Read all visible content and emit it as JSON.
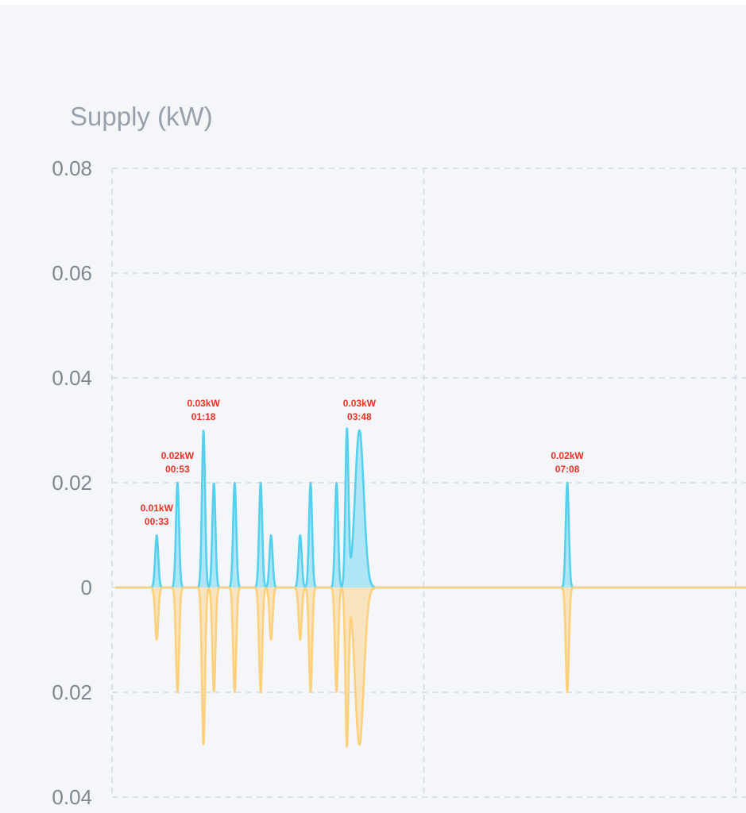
{
  "chart_data": {
    "type": "area",
    "ylabel": "Supply (kW)",
    "ylim": [
      -0.04,
      0.08
    ],
    "y_ticks": [
      {
        "value": 0.08,
        "label": "0.08"
      },
      {
        "value": 0.06,
        "label": "0.06"
      },
      {
        "value": 0.04,
        "label": "0.04"
      },
      {
        "value": 0.02,
        "label": "0.02"
      },
      {
        "value": 0,
        "label": "0"
      },
      {
        "value": -0.02,
        "label": "0.02"
      },
      {
        "value": -0.04,
        "label": "0.04"
      }
    ],
    "x_unit": "minutes",
    "xlim": [
      -10,
      590
    ],
    "x_gridlines": [
      -10,
      290,
      590
    ],
    "grid": true,
    "legend": "none",
    "series": [
      {
        "color": "#55d1ef",
        "fill": "#aee6f6",
        "direction": "up",
        "peaks": [
          {
            "t": 33,
            "v": 0.01
          },
          {
            "t": 53,
            "v": 0.02
          },
          {
            "t": 78,
            "v": 0.03
          },
          {
            "t": 88,
            "v": 0.02
          },
          {
            "t": 108,
            "v": 0.02
          },
          {
            "t": 133,
            "v": 0.02
          },
          {
            "t": 143,
            "v": 0.01
          },
          {
            "t": 171,
            "v": 0.01
          },
          {
            "t": 181,
            "v": 0.02
          },
          {
            "t": 206,
            "v": 0.02
          },
          {
            "t": 216,
            "v": 0.03
          },
          {
            "t": 228,
            "v": 0.03,
            "wide": true
          },
          {
            "t": 428,
            "v": 0.02
          }
        ]
      },
      {
        "color": "#fdd07c",
        "fill": "#f8e4bf",
        "direction": "down",
        "peaks": [
          {
            "t": 33,
            "v": -0.01
          },
          {
            "t": 53,
            "v": -0.02
          },
          {
            "t": 78,
            "v": -0.03
          },
          {
            "t": 88,
            "v": -0.02
          },
          {
            "t": 108,
            "v": -0.02
          },
          {
            "t": 133,
            "v": -0.02
          },
          {
            "t": 143,
            "v": -0.01
          },
          {
            "t": 171,
            "v": -0.01
          },
          {
            "t": 181,
            "v": -0.02
          },
          {
            "t": 206,
            "v": -0.02
          },
          {
            "t": 216,
            "v": -0.03
          },
          {
            "t": 228,
            "v": -0.03,
            "wide": true
          },
          {
            "t": 428,
            "v": -0.02
          }
        ]
      }
    ],
    "annotations": [
      {
        "t": 33,
        "v": 0.01,
        "value_text": "0.01kW",
        "time_text": "00:33"
      },
      {
        "t": 53,
        "v": 0.02,
        "value_text": "0.02kW",
        "time_text": "00:53"
      },
      {
        "t": 78,
        "v": 0.03,
        "value_text": "0.03kW",
        "time_text": "01:18"
      },
      {
        "t": 228,
        "v": 0.03,
        "value_text": "0.03kW",
        "time_text": "03:48"
      },
      {
        "t": 428,
        "v": 0.02,
        "value_text": "0.02kW",
        "time_text": "07:08"
      }
    ]
  }
}
